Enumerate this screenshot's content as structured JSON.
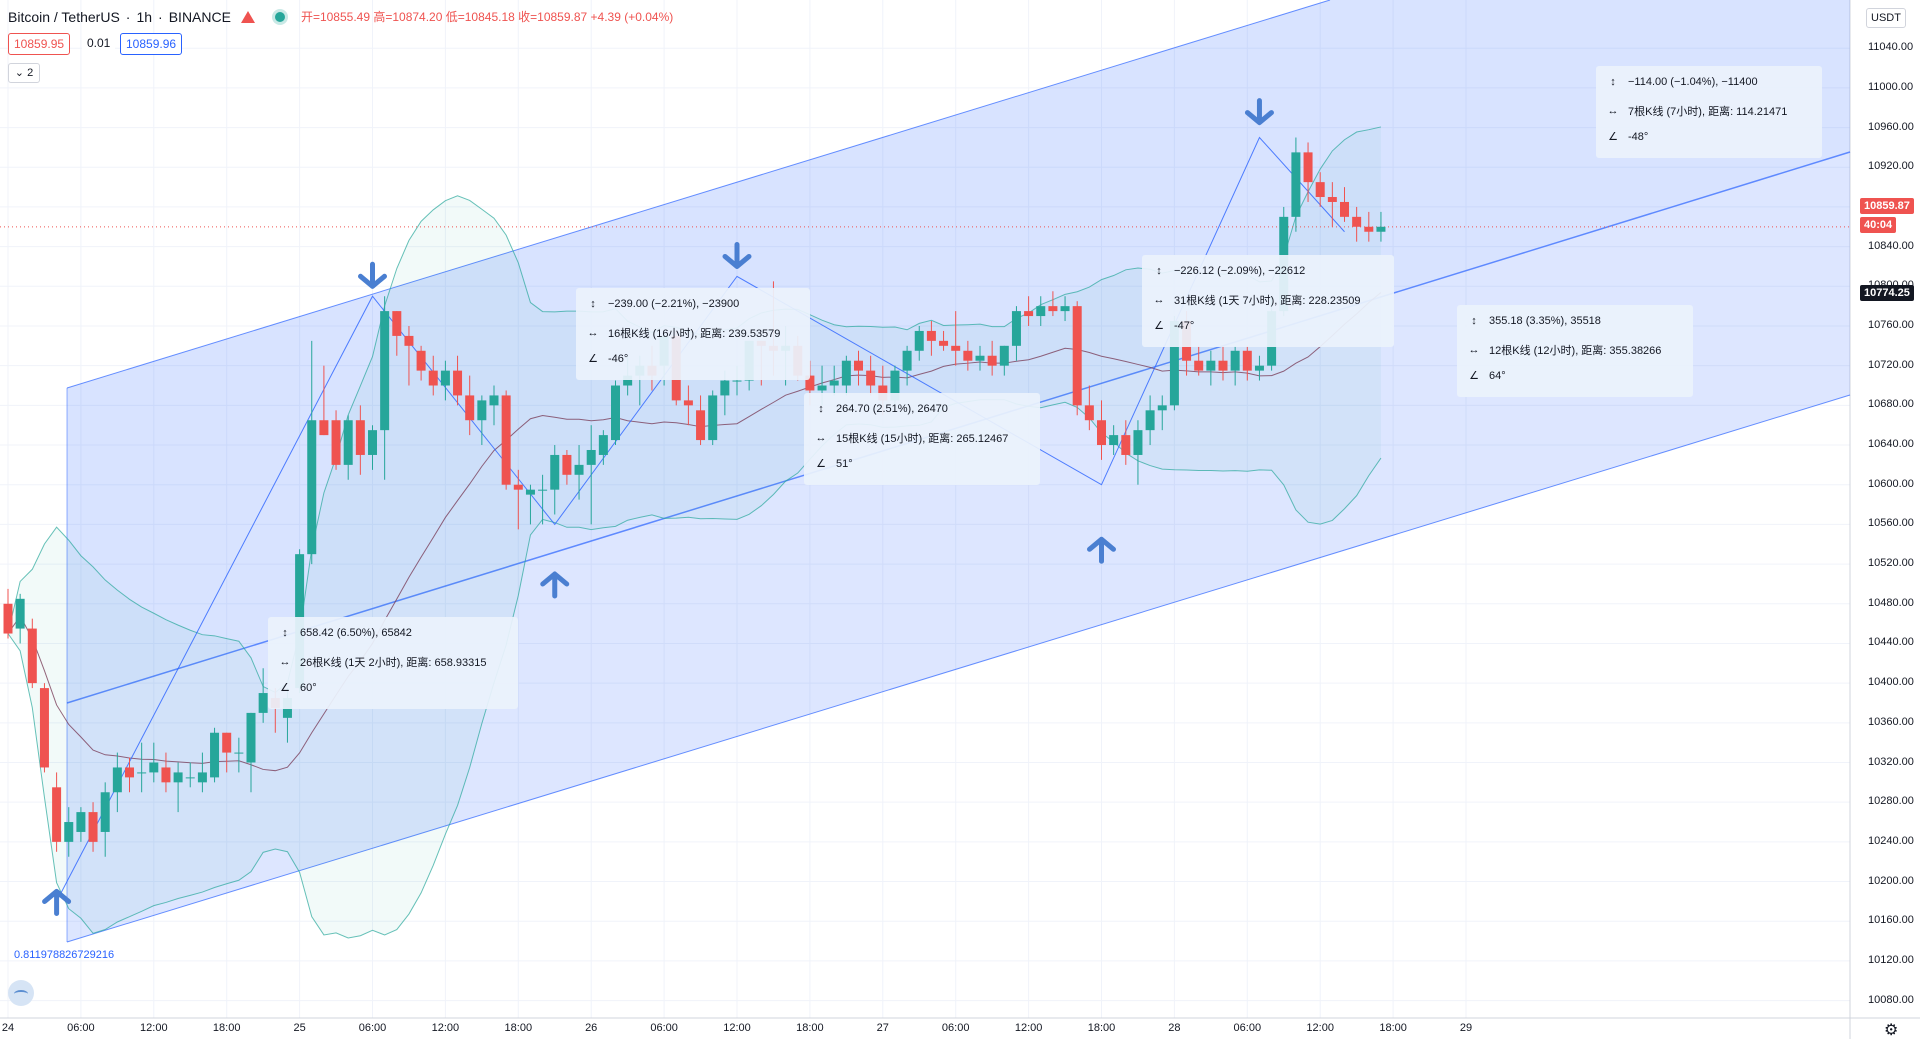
{
  "header": {
    "symbol": "Bitcoin / TetherUS",
    "interval": "1h",
    "exchange": "BINANCE",
    "ohlc": "开=10855.49 高=10874.20 低=10845.18 收=10859.87 +4.39 (+0.04%)"
  },
  "quote": {
    "sell": "10859.95",
    "spread": "0.01",
    "buy": "10859.96"
  },
  "collapse_label": "⌄ 2",
  "currency": "USDT",
  "price_tags": {
    "last": "10859.87",
    "countdown": "40:04",
    "ma": "10774.25"
  },
  "fib_label": "0.811978826729216",
  "colors": {
    "up": "#26a69a",
    "down": "#ef5350",
    "channel": "#2962ff",
    "arrow": "#4a7fd1"
  },
  "measure_boxes": [
    {
      "l1": "658.42 (6.50%), 65842",
      "l2": "26根K线 (1天 2小时), 距离: 658.93315",
      "l3": "60°"
    },
    {
      "l1": "−239.00 (−2.21%), −23900",
      "l2": "16根K线 (16小时), 距离: 239.53579",
      "l3": "-46°"
    },
    {
      "l1": "264.70 (2.51%), 26470",
      "l2": "15根K线 (15小时), 距离: 265.12467",
      "l3": "51°"
    },
    {
      "l1": "−226.12 (−2.09%), −22612",
      "l2": "31根K线 (1天 7小时), 距离: 228.23509",
      "l3": "-47°"
    },
    {
      "l1": "355.18 (3.35%), 35518",
      "l2": "12根K线 (12小时), 距离: 355.38266",
      "l3": "64°"
    },
    {
      "l1": "−114.00 (−1.04%), −11400",
      "l2": "7根K线 (7小时), 距离: 114.21471",
      "l3": "-48°"
    }
  ],
  "chart_data": {
    "type": "candlestick",
    "title": "Bitcoin / TetherUS · 1h · BINANCE",
    "ylim": [
      10060,
      11060
    ],
    "y_ticks": [
      10080,
      10120,
      10160,
      10200,
      10240,
      10280,
      10320,
      10360,
      10400,
      10440,
      10480,
      10520,
      10560,
      10600,
      10640,
      10680,
      10720,
      10760,
      10800,
      10840,
      10880,
      10920,
      10960,
      11000,
      11040
    ],
    "x_ticks": [
      {
        "i": 0,
        "label": "24"
      },
      {
        "i": 6,
        "label": "06:00"
      },
      {
        "i": 12,
        "label": "12:00"
      },
      {
        "i": 18,
        "label": "18:00"
      },
      {
        "i": 24,
        "label": "25"
      },
      {
        "i": 30,
        "label": "06:00"
      },
      {
        "i": 36,
        "label": "12:00"
      },
      {
        "i": 42,
        "label": "18:00"
      },
      {
        "i": 48,
        "label": "26"
      },
      {
        "i": 54,
        "label": "06:00"
      },
      {
        "i": 60,
        "label": "12:00"
      },
      {
        "i": 66,
        "label": "18:00"
      },
      {
        "i": 72,
        "label": "27"
      },
      {
        "i": 78,
        "label": "06:00"
      },
      {
        "i": 84,
        "label": "12:00"
      },
      {
        "i": 90,
        "label": "18:00"
      },
      {
        "i": 96,
        "label": "28"
      },
      {
        "i": 102,
        "label": "06:00"
      },
      {
        "i": 108,
        "label": "12:00"
      },
      {
        "i": 114,
        "label": "18:00"
      },
      {
        "i": 120,
        "label": "29"
      }
    ],
    "candles": [
      [
        10480,
        10495,
        10445,
        10450
      ],
      [
        10455,
        10490,
        10440,
        10485
      ],
      [
        10455,
        10465,
        10395,
        10400
      ],
      [
        10395,
        10400,
        10310,
        10315
      ],
      [
        10295,
        10310,
        10230,
        10240
      ],
      [
        10240,
        10275,
        10225,
        10260
      ],
      [
        10250,
        10275,
        10240,
        10270
      ],
      [
        10270,
        10280,
        10230,
        10240
      ],
      [
        10250,
        10300,
        10225,
        10290
      ],
      [
        10290,
        10330,
        10270,
        10315
      ],
      [
        10315,
        10325,
        10290,
        10305
      ],
      [
        10310,
        10340,
        10290,
        10310
      ],
      [
        10310,
        10340,
        10300,
        10320
      ],
      [
        10315,
        10330,
        10290,
        10300
      ],
      [
        10300,
        10320,
        10270,
        10310
      ],
      [
        10305,
        10320,
        10295,
        10305
      ],
      [
        10300,
        10330,
        10290,
        10310
      ],
      [
        10305,
        10355,
        10300,
        10350
      ],
      [
        10350,
        10350,
        10310,
        10330
      ],
      [
        10330,
        10345,
        10310,
        10330
      ],
      [
        10320,
        10370,
        10290,
        10370
      ],
      [
        10370,
        10415,
        10360,
        10390
      ],
      [
        10385,
        10395,
        10350,
        10375
      ],
      [
        10365,
        10395,
        10340,
        10385
      ],
      [
        10395,
        10535,
        10390,
        10530
      ],
      [
        10530,
        10745,
        10520,
        10665
      ],
      [
        10665,
        10720,
        10650,
        10650
      ],
      [
        10665,
        10675,
        10615,
        10620
      ],
      [
        10620,
        10670,
        10605,
        10665
      ],
      [
        10665,
        10680,
        10610,
        10630
      ],
      [
        10630,
        10660,
        10615,
        10655
      ],
      [
        10655,
        10790,
        10605,
        10775
      ],
      [
        10775,
        10775,
        10730,
        10750
      ],
      [
        10750,
        10760,
        10700,
        10740
      ],
      [
        10735,
        10740,
        10705,
        10715
      ],
      [
        10715,
        10730,
        10690,
        10700
      ],
      [
        10700,
        10725,
        10685,
        10715
      ],
      [
        10715,
        10730,
        10680,
        10690
      ],
      [
        10690,
        10710,
        10650,
        10665
      ],
      [
        10665,
        10690,
        10640,
        10685
      ],
      [
        10680,
        10700,
        10660,
        10690
      ],
      [
        10690,
        10695,
        10595,
        10600
      ],
      [
        10600,
        10615,
        10555,
        10595
      ],
      [
        10590,
        10600,
        10560,
        10595
      ],
      [
        10595,
        10610,
        10560,
        10595
      ],
      [
        10595,
        10640,
        10570,
        10630
      ],
      [
        10630,
        10635,
        10600,
        10610
      ],
      [
        10610,
        10640,
        10585,
        10620
      ],
      [
        10620,
        10660,
        10560,
        10635
      ],
      [
        10630,
        10655,
        10620,
        10650
      ],
      [
        10645,
        10705,
        10640,
        10700
      ],
      [
        10700,
        10730,
        10690,
        10710
      ],
      [
        10710,
        10730,
        10680,
        10720
      ],
      [
        10720,
        10740,
        10695,
        10710
      ],
      [
        10720,
        10755,
        10700,
        10750
      ],
      [
        10750,
        10755,
        10680,
        10685
      ],
      [
        10685,
        10700,
        10660,
        10680
      ],
      [
        10675,
        10690,
        10640,
        10645
      ],
      [
        10645,
        10695,
        10640,
        10690
      ],
      [
        10690,
        10715,
        10670,
        10705
      ],
      [
        10705,
        10720,
        10690,
        10705
      ],
      [
        10705,
        10745,
        10695,
        10745
      ],
      [
        10745,
        10745,
        10700,
        10740
      ],
      [
        10740,
        10805,
        10710,
        10735
      ],
      [
        10735,
        10760,
        10700,
        10740
      ],
      [
        10740,
        10750,
        10705,
        10710
      ],
      [
        10710,
        10725,
        10680,
        10695
      ],
      [
        10695,
        10720,
        10680,
        10700
      ],
      [
        10700,
        10720,
        10690,
        10705
      ],
      [
        10700,
        10730,
        10690,
        10725
      ],
      [
        10725,
        10735,
        10700,
        10715
      ],
      [
        10715,
        10730,
        10690,
        10700
      ],
      [
        10700,
        10720,
        10670,
        10685
      ],
      [
        10685,
        10720,
        10680,
        10715
      ],
      [
        10715,
        10740,
        10700,
        10735
      ],
      [
        10735,
        10760,
        10725,
        10755
      ],
      [
        10755,
        10765,
        10730,
        10745
      ],
      [
        10745,
        10755,
        10735,
        10740
      ],
      [
        10740,
        10775,
        10720,
        10735
      ],
      [
        10735,
        10745,
        10715,
        10725
      ],
      [
        10725,
        10740,
        10715,
        10730
      ],
      [
        10730,
        10745,
        10710,
        10720
      ],
      [
        10720,
        10740,
        10710,
        10740
      ],
      [
        10740,
        10780,
        10725,
        10775
      ],
      [
        10775,
        10790,
        10760,
        10770
      ],
      [
        10770,
        10790,
        10760,
        10780
      ],
      [
        10780,
        10795,
        10770,
        10775
      ],
      [
        10775,
        10790,
        10765,
        10780
      ],
      [
        10780,
        10785,
        10670,
        10680
      ],
      [
        10680,
        10700,
        10655,
        10665
      ],
      [
        10665,
        10685,
        10625,
        10640
      ],
      [
        10640,
        10660,
        10630,
        10650
      ],
      [
        10650,
        10665,
        10620,
        10630
      ],
      [
        10630,
        10665,
        10600,
        10655
      ],
      [
        10655,
        10690,
        10640,
        10675
      ],
      [
        10675,
        10690,
        10655,
        10680
      ],
      [
        10680,
        10770,
        10675,
        10765
      ],
      [
        10765,
        10775,
        10710,
        10725
      ],
      [
        10725,
        10740,
        10710,
        10715
      ],
      [
        10715,
        10735,
        10700,
        10725
      ],
      [
        10725,
        10740,
        10705,
        10715
      ],
      [
        10715,
        10740,
        10700,
        10735
      ],
      [
        10735,
        10740,
        10705,
        10715
      ],
      [
        10715,
        10730,
        10705,
        10720
      ],
      [
        10720,
        10790,
        10715,
        10775
      ],
      [
        10775,
        10880,
        10770,
        10870
      ],
      [
        10870,
        10950,
        10855,
        10935
      ],
      [
        10935,
        10945,
        10885,
        10905
      ],
      [
        10905,
        10915,
        10880,
        10890
      ],
      [
        10890,
        10905,
        10860,
        10885
      ],
      [
        10885,
        10900,
        10865,
        10870
      ],
      [
        10870,
        10880,
        10845,
        10860
      ],
      [
        10860,
        10875,
        10845,
        10855
      ],
      [
        10855,
        10875,
        10845,
        10860
      ]
    ]
  }
}
